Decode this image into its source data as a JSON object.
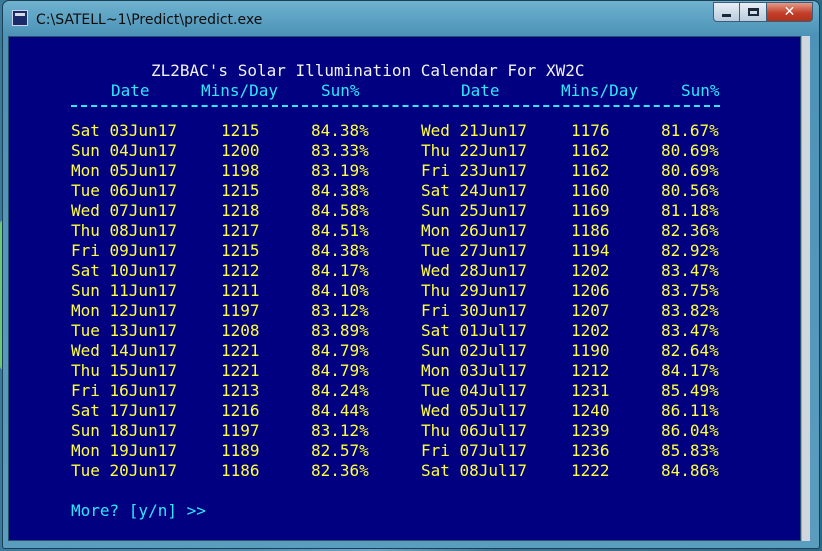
{
  "window": {
    "title": "C:\\SATELL~1\\Predict\\predict.exe",
    "controls": {
      "minimize_icon": "minimize-icon",
      "maximize_icon": "maximize-icon",
      "close_label": "✕"
    }
  },
  "console": {
    "heading": "ZL2BAC's Solar Illumination Calendar For XW2C",
    "columns": {
      "left": {
        "date": "Date",
        "mins": "Mins/Day",
        "sun": "Sun%"
      },
      "right": {
        "date": "Date",
        "mins": "Mins/Day",
        "sun": "Sun%"
      }
    },
    "left_rows": [
      {
        "date": "Sat 03Jun17",
        "mins": "1215",
        "sun": "84.38%"
      },
      {
        "date": "Sun 04Jun17",
        "mins": "1200",
        "sun": "83.33%"
      },
      {
        "date": "Mon 05Jun17",
        "mins": "1198",
        "sun": "83.19%"
      },
      {
        "date": "Tue 06Jun17",
        "mins": "1215",
        "sun": "84.38%"
      },
      {
        "date": "Wed 07Jun17",
        "mins": "1218",
        "sun": "84.58%"
      },
      {
        "date": "Thu 08Jun17",
        "mins": "1217",
        "sun": "84.51%"
      },
      {
        "date": "Fri 09Jun17",
        "mins": "1215",
        "sun": "84.38%"
      },
      {
        "date": "Sat 10Jun17",
        "mins": "1212",
        "sun": "84.17%"
      },
      {
        "date": "Sun 11Jun17",
        "mins": "1211",
        "sun": "84.10%"
      },
      {
        "date": "Mon 12Jun17",
        "mins": "1197",
        "sun": "83.12%"
      },
      {
        "date": "Tue 13Jun17",
        "mins": "1208",
        "sun": "83.89%"
      },
      {
        "date": "Wed 14Jun17",
        "mins": "1221",
        "sun": "84.79%"
      },
      {
        "date": "Thu 15Jun17",
        "mins": "1221",
        "sun": "84.79%"
      },
      {
        "date": "Fri 16Jun17",
        "mins": "1213",
        "sun": "84.24%"
      },
      {
        "date": "Sat 17Jun17",
        "mins": "1216",
        "sun": "84.44%"
      },
      {
        "date": "Sun 18Jun17",
        "mins": "1197",
        "sun": "83.12%"
      },
      {
        "date": "Mon 19Jun17",
        "mins": "1189",
        "sun": "82.57%"
      },
      {
        "date": "Tue 20Jun17",
        "mins": "1186",
        "sun": "82.36%"
      }
    ],
    "right_rows": [
      {
        "date": "Wed 21Jun17",
        "mins": "1176",
        "sun": "81.67%"
      },
      {
        "date": "Thu 22Jun17",
        "mins": "1162",
        "sun": "80.69%"
      },
      {
        "date": "Fri 23Jun17",
        "mins": "1162",
        "sun": "80.69%"
      },
      {
        "date": "Sat 24Jun17",
        "mins": "1160",
        "sun": "80.56%"
      },
      {
        "date": "Sun 25Jun17",
        "mins": "1169",
        "sun": "81.18%"
      },
      {
        "date": "Mon 26Jun17",
        "mins": "1186",
        "sun": "82.36%"
      },
      {
        "date": "Tue 27Jun17",
        "mins": "1194",
        "sun": "82.92%"
      },
      {
        "date": "Wed 28Jun17",
        "mins": "1202",
        "sun": "83.47%"
      },
      {
        "date": "Thu 29Jun17",
        "mins": "1206",
        "sun": "83.75%"
      },
      {
        "date": "Fri 30Jun17",
        "mins": "1207",
        "sun": "83.82%"
      },
      {
        "date": "Sat 01Jul17",
        "mins": "1202",
        "sun": "83.47%"
      },
      {
        "date": "Sun 02Jul17",
        "mins": "1190",
        "sun": "82.64%"
      },
      {
        "date": "Mon 03Jul17",
        "mins": "1212",
        "sun": "84.17%"
      },
      {
        "date": "Tue 04Jul17",
        "mins": "1231",
        "sun": "85.49%"
      },
      {
        "date": "Wed 05Jul17",
        "mins": "1240",
        "sun": "86.11%"
      },
      {
        "date": "Thu 06Jul17",
        "mins": "1239",
        "sun": "86.04%"
      },
      {
        "date": "Fri 07Jul17",
        "mins": "1236",
        "sun": "85.83%"
      },
      {
        "date": "Sat 08Jul17",
        "mins": "1222",
        "sun": "84.86%"
      }
    ],
    "prompt": "More? [y/n] >>"
  },
  "colors": {
    "console_bg": "#000080",
    "header_text": "#2ee8ff",
    "data_text": "#ffff3a",
    "title_text": "#f2f2f2"
  }
}
